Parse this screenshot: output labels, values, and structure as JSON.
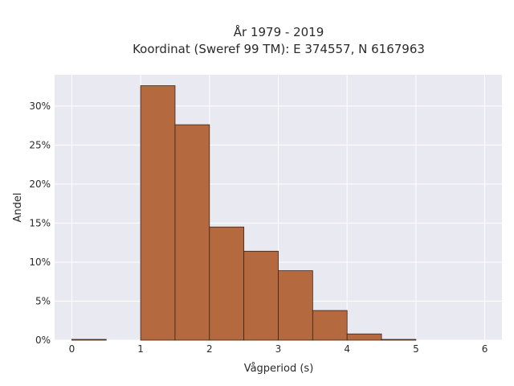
{
  "chart_data": {
    "type": "bar",
    "title_line1": "År 1979 - 2019",
    "title_line2": "Koordinat (Sweref 99 TM): E 374557, N 6167963",
    "xlabel": "Vågperiod (s)",
    "ylabel": "Andel",
    "xlim": [
      -0.25,
      6.25
    ],
    "ylim": [
      0,
      34
    ],
    "x_ticks": [
      0,
      1,
      2,
      3,
      4,
      5,
      6
    ],
    "x_tick_labels": [
      "0",
      "1",
      "2",
      "3",
      "4",
      "5",
      "6"
    ],
    "y_ticks": [
      0,
      5,
      10,
      15,
      20,
      25,
      30
    ],
    "y_tick_labels": [
      "0%",
      "5%",
      "10%",
      "15%",
      "20%",
      "25%",
      "30%"
    ],
    "bins": [
      {
        "x0": 0.0,
        "x1": 0.5,
        "value": 0.1
      },
      {
        "x0": 1.0,
        "x1": 1.5,
        "value": 32.6
      },
      {
        "x0": 1.5,
        "x1": 2.0,
        "value": 27.6
      },
      {
        "x0": 2.0,
        "x1": 2.5,
        "value": 14.5
      },
      {
        "x0": 2.5,
        "x1": 3.0,
        "value": 11.4
      },
      {
        "x0": 3.0,
        "x1": 3.5,
        "value": 8.9
      },
      {
        "x0": 3.5,
        "x1": 4.0,
        "value": 3.8
      },
      {
        "x0": 4.0,
        "x1": 4.5,
        "value": 0.8
      },
      {
        "x0": 4.5,
        "x1": 5.0,
        "value": 0.1
      }
    ],
    "grid": true,
    "colors": {
      "bar_fill": "#b5693e",
      "bar_stroke": "#3a2418",
      "plot_background": "#e9e9f1",
      "grid": "#ffffff"
    }
  }
}
